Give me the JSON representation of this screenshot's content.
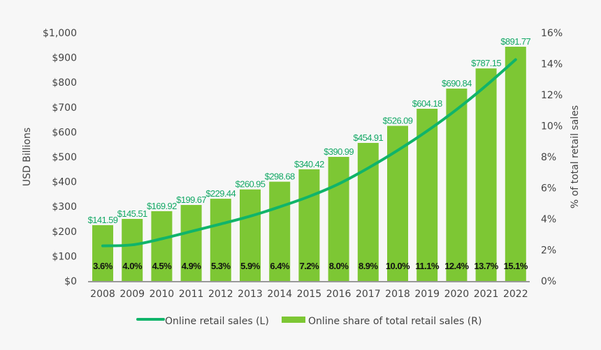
{
  "chart_data": {
    "type": "bar+line",
    "categories": [
      "2008",
      "2009",
      "2010",
      "2011",
      "2012",
      "2013",
      "2014",
      "2015",
      "2016",
      "2017",
      "2018",
      "2019",
      "2020",
      "2021",
      "2022"
    ],
    "series": [
      {
        "name": "Online retail sales (L)",
        "type": "line",
        "axis": "left",
        "color": "#10b46a",
        "values": [
          141.59,
          145.51,
          169.92,
          199.67,
          229.44,
          260.95,
          298.68,
          340.42,
          390.99,
          454.91,
          526.09,
          604.18,
          690.84,
          787.15,
          891.77
        ],
        "labels": [
          "$141.59",
          "$145.51",
          "$169.92",
          "$199.67",
          "$229.44",
          "$260.95",
          "$298.68",
          "$340.42",
          "$390.99",
          "$454.91",
          "$526.09",
          "$604.18",
          "$690.84",
          "$787.15",
          "$891.77"
        ]
      },
      {
        "name": "Online share of total retail sales (R)",
        "type": "bar",
        "axis": "right",
        "color": "#7dc734",
        "values": [
          3.6,
          4.0,
          4.5,
          4.9,
          5.3,
          5.9,
          6.4,
          7.2,
          8.0,
          8.9,
          10.0,
          11.1,
          12.4,
          13.7,
          15.1
        ],
        "labels": [
          "3.6%",
          "4.0%",
          "4.5%",
          "4.9%",
          "5.3%",
          "5.9%",
          "6.4%",
          "7.2%",
          "8.0%",
          "8.9%",
          "10.0%",
          "11.1%",
          "12.4%",
          "13.7%",
          "15.1%"
        ]
      }
    ],
    "ylabel_left": "USD Billions",
    "ylabel_right": "% of total retail sales",
    "ylim_left": [
      0,
      1000
    ],
    "ylim_right": [
      0,
      16
    ],
    "yticks_left": [
      "$0",
      "$100",
      "$200",
      "$300",
      "$400",
      "$500",
      "$600",
      "$700",
      "$800",
      "$900",
      "$1,000"
    ],
    "yticks_right": [
      "0%",
      "2%",
      "4%",
      "6%",
      "8%",
      "10%",
      "12%",
      "14%",
      "16%"
    ],
    "grid": false,
    "legend_position": "bottom"
  }
}
